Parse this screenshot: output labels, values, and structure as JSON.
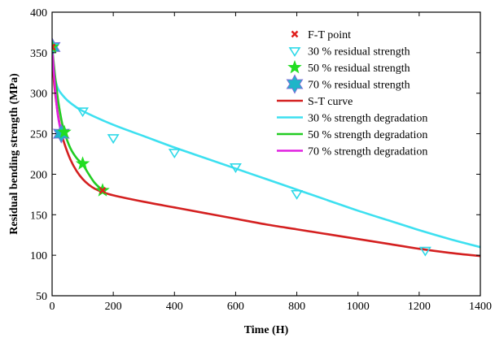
{
  "chart_data": {
    "type": "line",
    "xlabel": "Time (H)",
    "ylabel": "Residual bending strength (MPa)",
    "xlim": [
      0,
      1400
    ],
    "ylim": [
      50,
      400
    ],
    "xticks": [
      0,
      200,
      400,
      600,
      800,
      1000,
      1200,
      1400
    ],
    "yticks": [
      50,
      100,
      150,
      200,
      250,
      300,
      350,
      400
    ],
    "grid": false,
    "legend_position": "top-right",
    "scatter_series": [
      {
        "name": "F-T point",
        "marker": "x",
        "color": "#e0201e",
        "points": [
          [
            0,
            357
          ],
          [
            165,
            180
          ]
        ]
      },
      {
        "name": "30 % residual strength",
        "marker": "triangle-down",
        "color": "#2ed9e8",
        "points": [
          [
            0,
            357
          ],
          [
            100,
            278
          ],
          [
            200,
            245
          ],
          [
            400,
            227
          ],
          [
            600,
            209
          ],
          [
            800,
            176
          ],
          [
            1220,
            106
          ]
        ]
      },
      {
        "name": "50 % residual strength",
        "marker": "star",
        "color": "#22dd22",
        "points": [
          [
            0,
            357
          ],
          [
            40,
            252
          ],
          [
            100,
            213
          ],
          [
            165,
            180
          ]
        ]
      },
      {
        "name": "70 % residual strength",
        "marker": "hexagram",
        "color": "#1fb5c8",
        "points": [
          [
            0,
            357
          ],
          [
            30,
            250
          ]
        ]
      }
    ],
    "line_series": [
      {
        "name": "S-T curve",
        "color": "#d42020",
        "points": [
          [
            0,
            357
          ],
          [
            5,
            320
          ],
          [
            10,
            300
          ],
          [
            20,
            272
          ],
          [
            30,
            252
          ],
          [
            40,
            238
          ],
          [
            60,
            218
          ],
          [
            80,
            204
          ],
          [
            100,
            194
          ],
          [
            120,
            187
          ],
          [
            140,
            182
          ],
          [
            165,
            178
          ],
          [
            200,
            174
          ],
          [
            300,
            166
          ],
          [
            400,
            159
          ],
          [
            500,
            152
          ],
          [
            600,
            145
          ],
          [
            700,
            138
          ],
          [
            800,
            132
          ],
          [
            900,
            126
          ],
          [
            1000,
            120
          ],
          [
            1100,
            114
          ],
          [
            1200,
            108
          ],
          [
            1300,
            103
          ],
          [
            1400,
            99
          ]
        ]
      },
      {
        "name": "30 % strength degradation",
        "color": "#3de0f0",
        "points": [
          [
            0,
            357
          ],
          [
            5,
            330
          ],
          [
            10,
            318
          ],
          [
            20,
            305
          ],
          [
            40,
            295
          ],
          [
            60,
            288
          ],
          [
            100,
            278
          ],
          [
            200,
            261
          ],
          [
            300,
            247
          ],
          [
            400,
            233
          ],
          [
            500,
            220
          ],
          [
            600,
            207
          ],
          [
            700,
            194
          ],
          [
            800,
            181
          ],
          [
            900,
            168
          ],
          [
            1000,
            155
          ],
          [
            1100,
            143
          ],
          [
            1200,
            131
          ],
          [
            1300,
            120
          ],
          [
            1400,
            110
          ]
        ]
      },
      {
        "name": "50 % strength degradation",
        "color": "#22cc22",
        "points": [
          [
            0,
            357
          ],
          [
            10,
            320
          ],
          [
            20,
            290
          ],
          [
            30,
            268
          ],
          [
            40,
            252
          ],
          [
            60,
            232
          ],
          [
            80,
            220
          ],
          [
            100,
            212
          ],
          [
            120,
            200
          ],
          [
            140,
            189
          ],
          [
            165,
            180
          ]
        ]
      },
      {
        "name": "70 % strength degradation",
        "color": "#e020e0",
        "points": [
          [
            0,
            357
          ],
          [
            5,
            330
          ],
          [
            10,
            305
          ],
          [
            15,
            285
          ],
          [
            20,
            270
          ],
          [
            30,
            250
          ]
        ]
      }
    ]
  }
}
